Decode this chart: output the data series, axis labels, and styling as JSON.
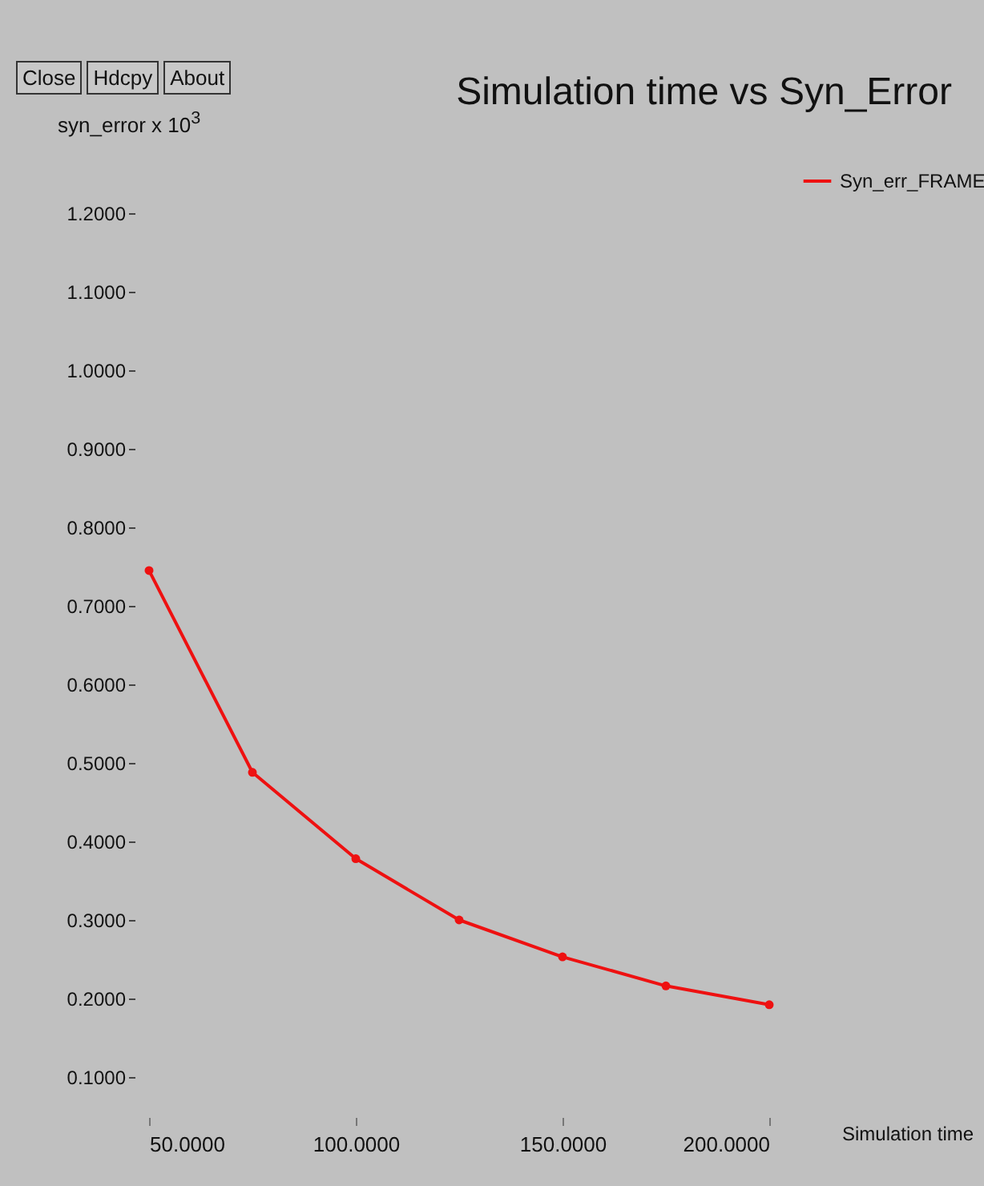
{
  "chart_data": {
    "type": "line",
    "title": "Simulation time vs Syn_Error",
    "xlabel": "Simulation time",
    "ylabel": "syn_error x 10$^{3}$",
    "annotations": [
      "Close",
      "Hdcpy",
      "About"
    ],
    "x": [
      50,
      75,
      100,
      125,
      150,
      175,
      200
    ],
    "series": [
      {
        "name": "Syn_err_FRAME",
        "color": "#ee1111",
        "values": [
          0.745,
          0.488,
          0.378,
          0.3,
          0.253,
          0.216,
          0.192
        ]
      }
    ],
    "xlim": [
      50,
      200
    ],
    "ylim": [
      0.1,
      1.2
    ],
    "xticks": [
      {
        "value": 50,
        "label": "50.0000"
      },
      {
        "value": 100,
        "label": "100.0000"
      },
      {
        "value": 150,
        "label": "150.0000"
      },
      {
        "value": 200,
        "label": "200.0000"
      }
    ],
    "yticks": [
      {
        "value": 0.1,
        "label": "0.1000"
      },
      {
        "value": 0.2,
        "label": "0.2000"
      },
      {
        "value": 0.3,
        "label": "0.3000"
      },
      {
        "value": 0.4,
        "label": "0.4000"
      },
      {
        "value": 0.5,
        "label": "0.5000"
      },
      {
        "value": 0.6,
        "label": "0.6000"
      },
      {
        "value": 0.7,
        "label": "0.7000"
      },
      {
        "value": 0.8,
        "label": "0.8000"
      },
      {
        "value": 0.9,
        "label": "0.9000"
      },
      {
        "value": 1.0,
        "label": "1.0000"
      },
      {
        "value": 1.1,
        "label": "1.1000"
      },
      {
        "value": 1.2,
        "label": "1.2000"
      }
    ],
    "grid": false,
    "legend": "top right",
    "marker": "circle",
    "line_style": "solid"
  }
}
